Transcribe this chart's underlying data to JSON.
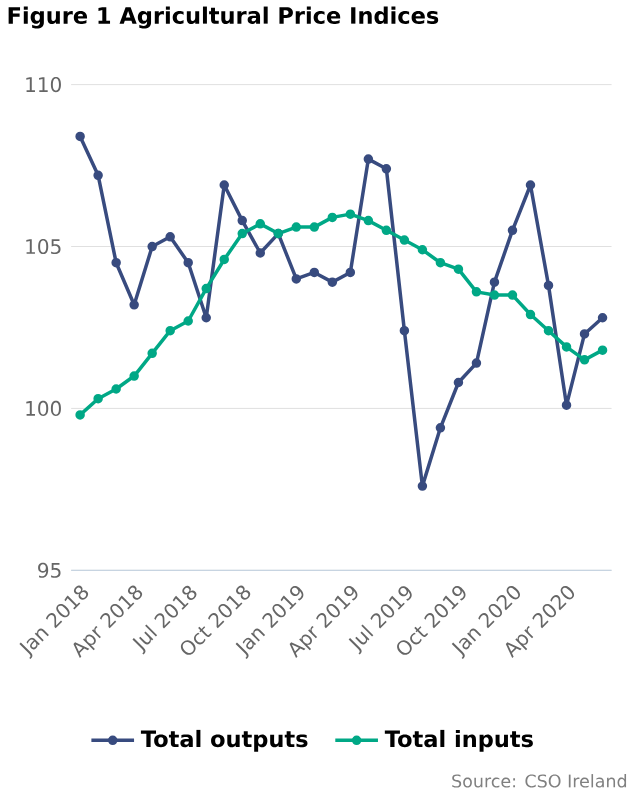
{
  "chart_data": {
    "type": "line",
    "title": "Figure 1 Agricultural Price Indices",
    "categories": [
      "Jan 2018",
      null,
      null,
      "Apr 2018",
      null,
      null,
      "Jul 2018",
      null,
      null,
      "Oct 2018",
      null,
      null,
      "Jan 2019",
      null,
      null,
      "Apr 2019",
      null,
      null,
      "Jul 2019",
      null,
      null,
      "Oct 2019",
      null,
      null,
      "Jan 2020",
      null,
      null,
      "Apr 2020",
      null,
      null
    ],
    "series": [
      {
        "name": "Total outputs",
        "color": "#384b7f",
        "values": [
          108.4,
          107.2,
          104.5,
          103.2,
          105.0,
          105.3,
          104.5,
          102.8,
          106.9,
          105.8,
          104.8,
          105.4,
          104.0,
          104.2,
          103.9,
          104.2,
          107.7,
          107.4,
          102.4,
          97.6,
          99.4,
          100.8,
          101.4,
          103.9,
          105.5,
          106.9,
          103.8,
          100.1,
          102.3,
          102.8
        ]
      },
      {
        "name": "Total inputs",
        "color": "#00a886",
        "values": [
          99.8,
          100.3,
          100.6,
          101.0,
          101.7,
          102.4,
          102.7,
          103.7,
          104.6,
          105.4,
          105.7,
          105.4,
          105.6,
          105.6,
          105.9,
          106.0,
          105.8,
          105.5,
          105.2,
          104.9,
          104.5,
          104.3,
          103.6,
          103.5,
          103.5,
          102.9,
          102.4,
          101.9,
          101.5,
          101.8
        ]
      }
    ],
    "ylim": [
      95,
      110
    ],
    "yticks": [
      95,
      100,
      105,
      110
    ],
    "grid": "y",
    "legend": "bottom",
    "marker": "circle",
    "line_style": "solid",
    "annotations": [
      "Source: CSO Ireland"
    ]
  }
}
